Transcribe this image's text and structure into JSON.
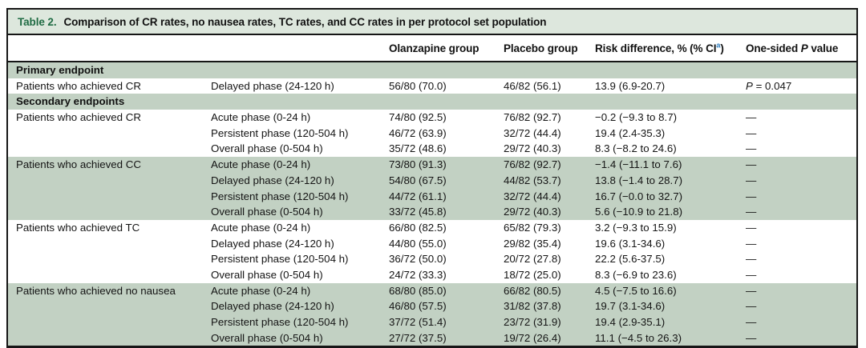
{
  "table": {
    "title_label": "Table 2.",
    "title_text": "Comparison of CR rates, no nausea rates, TC rates, and CC rates in per protocol set population",
    "columns": {
      "olanzapine": "Olanzapine group",
      "placebo": "Placebo group",
      "risk_prefix": "Risk difference, % (% CI",
      "risk_sup": "a",
      "risk_suffix": ")",
      "p_prefix": "One-sided ",
      "p_italic": "P",
      "p_suffix": " value"
    },
    "rows": [
      {
        "type": "section",
        "label": "Primary endpoint"
      },
      {
        "type": "data",
        "band": "white",
        "endpoint": "Patients who achieved CR",
        "phase": "Delayed phase (24-120 h)",
        "olanzapine": "56/80 (70.0)",
        "placebo": "46/82 (56.1)",
        "risk_diff": "13.9 (6.9-20.7)",
        "p_value": {
          "italic": "P",
          "rest": " = 0.047"
        }
      },
      {
        "type": "section",
        "label": "Secondary endpoints"
      },
      {
        "type": "data",
        "band": "white",
        "endpoint": "Patients who achieved CR",
        "phase": "Acute phase (0-24 h)",
        "olanzapine": "74/80 (92.5)",
        "placebo": "76/82 (92.7)",
        "risk_diff": "−0.2 (−9.3 to 8.7)",
        "p_value": "—"
      },
      {
        "type": "data",
        "band": "white",
        "endpoint": "",
        "phase": "Persistent phase (120-504 h)",
        "olanzapine": "46/72 (63.9)",
        "placebo": "32/72 (44.4)",
        "risk_diff": "19.4 (2.4-35.3)",
        "p_value": "—"
      },
      {
        "type": "data",
        "band": "white",
        "endpoint": "",
        "phase": "Overall phase (0-504 h)",
        "olanzapine": "35/72 (48.6)",
        "placebo": "29/72 (40.3)",
        "risk_diff": "8.3 (−8.2 to 24.6)",
        "p_value": "—"
      },
      {
        "type": "data",
        "band": "green",
        "endpoint": "Patients who achieved CC",
        "phase": "Acute phase (0-24 h)",
        "olanzapine": "73/80 (91.3)",
        "placebo": "76/82 (92.7)",
        "risk_diff": "−1.4 (−11.1 to 7.6)",
        "p_value": "—"
      },
      {
        "type": "data",
        "band": "green",
        "endpoint": "",
        "phase": "Delayed phase (24-120 h)",
        "olanzapine": "54/80 (67.5)",
        "placebo": "44/82 (53.7)",
        "risk_diff": "13.8 (−1.4 to 28.7)",
        "p_value": "—"
      },
      {
        "type": "data",
        "band": "green",
        "endpoint": "",
        "phase": "Persistent phase (120-504 h)",
        "olanzapine": "44/72 (61.1)",
        "placebo": "32/72 (44.4)",
        "risk_diff": "16.7 (−0.0 to 32.7)",
        "p_value": "—"
      },
      {
        "type": "data",
        "band": "green",
        "endpoint": "",
        "phase": "Overall phase (0-504 h)",
        "olanzapine": "33/72 (45.8)",
        "placebo": "29/72 (40.3)",
        "risk_diff": "5.6 (−10.9 to 21.8)",
        "p_value": "—"
      },
      {
        "type": "data",
        "band": "white",
        "endpoint": "Patients who achieved TC",
        "phase": "Acute phase (0-24 h)",
        "olanzapine": "66/80 (82.5)",
        "placebo": "65/82 (79.3)",
        "risk_diff": "3.2 (−9.3 to 15.9)",
        "p_value": "—"
      },
      {
        "type": "data",
        "band": "white",
        "endpoint": "",
        "phase": "Delayed phase (24-120 h)",
        "olanzapine": "44/80 (55.0)",
        "placebo": "29/82 (35.4)",
        "risk_diff": "19.6 (3.1-34.6)",
        "p_value": "—"
      },
      {
        "type": "data",
        "band": "white",
        "endpoint": "",
        "phase": "Persistent phase (120-504 h)",
        "olanzapine": "36/72 (50.0)",
        "placebo": "20/72 (27.8)",
        "risk_diff": "22.2 (5.6-37.5)",
        "p_value": "—"
      },
      {
        "type": "data",
        "band": "white",
        "endpoint": "",
        "phase": "Overall phase (0-504 h)",
        "olanzapine": "24/72 (33.3)",
        "placebo": "18/72 (25.0)",
        "risk_diff": "8.3 (−6.9 to 23.6)",
        "p_value": "—"
      },
      {
        "type": "data",
        "band": "green",
        "endpoint": "Patients who achieved no nausea",
        "phase": "Acute phase (0-24 h)",
        "olanzapine": "68/80 (85.0)",
        "placebo": "66/82 (80.5)",
        "risk_diff": "4.5 (−7.5 to 16.6)",
        "p_value": "—"
      },
      {
        "type": "data",
        "band": "green",
        "endpoint": "",
        "phase": "Delayed phase (24-120 h)",
        "olanzapine": "46/80 (57.5)",
        "placebo": "31/82 (37.8)",
        "risk_diff": "19.7 (3.1-34.6)",
        "p_value": "—"
      },
      {
        "type": "data",
        "band": "green",
        "endpoint": "",
        "phase": "Persistent phase (120-504 h)",
        "olanzapine": "37/72 (51.4)",
        "placebo": "23/72 (31.9)",
        "risk_diff": "19.4 (2.9-35.1)",
        "p_value": "—"
      },
      {
        "type": "data",
        "band": "green",
        "endpoint": "",
        "phase": "Overall phase (0-504 h)",
        "olanzapine": "27/72 (37.5)",
        "placebo": "19/72 (26.4)",
        "risk_diff": "11.1 (−4.5 to 26.3)",
        "p_value": "—"
      }
    ],
    "colors": {
      "band_green": "#c2d1c3",
      "title_bar_bg": "#dde7dd",
      "title_label_green": "#1f6b43",
      "superscript_blue": "#2b7bbd",
      "border_black": "#161616"
    }
  }
}
